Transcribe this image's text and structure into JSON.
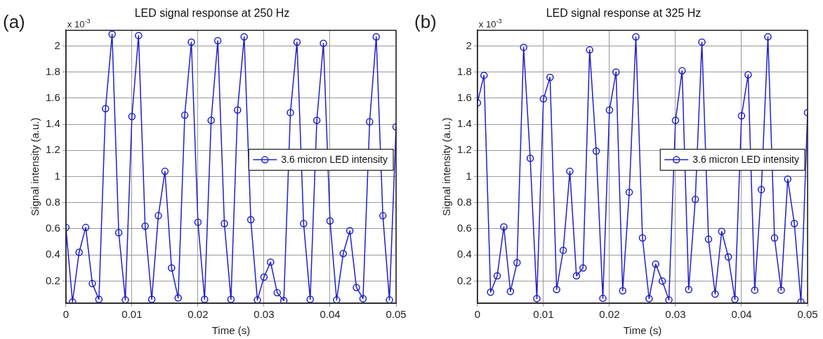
{
  "chart_data": [
    {
      "type": "line",
      "title": "LED signal response at 250 Hz",
      "xlabel": "Time (s)",
      "ylabel": "Signal intensity (a.u.)",
      "annotations": [
        "(a)",
        "x 10$^{-3}$"
      ],
      "x": [
        0,
        0.001,
        0.002,
        0.003,
        0.004,
        0.005,
        0.006,
        0.007,
        0.008,
        0.009,
        0.01,
        0.011,
        0.012,
        0.013,
        0.014,
        0.015,
        0.016,
        0.017,
        0.018,
        0.019,
        0.02,
        0.021,
        0.022,
        0.023,
        0.024,
        0.025,
        0.026,
        0.027,
        0.028,
        0.029,
        0.03,
        0.031,
        0.032,
        0.033,
        0.034,
        0.035,
        0.036,
        0.037,
        0.038,
        0.039,
        0.04,
        0.041,
        0.042,
        0.043,
        0.044,
        0.045,
        0.046,
        0.047,
        0.048,
        0.049,
        0.05
      ],
      "series": [
        {
          "name": "3.6 micron LED intensity",
          "color": "#2020c8",
          "values": [
            0.61,
            0.04,
            0.42,
            0.61,
            0.18,
            0.06,
            1.52,
            2.09,
            0.57,
            0.055,
            1.46,
            2.08,
            0.62,
            0.06,
            0.7,
            1.04,
            0.3,
            0.07,
            1.47,
            2.03,
            0.65,
            0.06,
            1.43,
            2.04,
            0.64,
            0.06,
            1.51,
            2.07,
            0.67,
            0.055,
            0.23,
            0.345,
            0.11,
            0.05,
            1.49,
            2.03,
            0.64,
            0.06,
            1.43,
            2.02,
            0.66,
            0.055,
            0.41,
            0.585,
            0.15,
            0.065,
            1.42,
            2.07,
            0.7,
            0.055,
            1.38
          ]
        }
      ],
      "xlim": [
        0,
        0.05
      ],
      "xticks": [
        0,
        0.01,
        0.02,
        0.03,
        0.04,
        0.05
      ],
      "ylim": [
        0.03,
        2.12
      ],
      "yticks": [
        0.2,
        0.4,
        0.6,
        0.8,
        1,
        1.2,
        1.4,
        1.6,
        1.8,
        2
      ],
      "grid": true,
      "legend": "right",
      "marker": "circle",
      "line_style": "solid"
    },
    {
      "type": "line",
      "title": "LED signal response at 325 Hz",
      "xlabel": "Time (s)",
      "ylabel": "Signal intensity (a.u.)",
      "annotations": [
        "(b)",
        "x 10$^{-3}$"
      ],
      "x": [
        0,
        0.001,
        0.002,
        0.003,
        0.004,
        0.005,
        0.006,
        0.007,
        0.008,
        0.009,
        0.01,
        0.011,
        0.012,
        0.013,
        0.014,
        0.015,
        0.016,
        0.017,
        0.018,
        0.019,
        0.02,
        0.021,
        0.022,
        0.023,
        0.024,
        0.025,
        0.026,
        0.027,
        0.028,
        0.029,
        0.03,
        0.031,
        0.032,
        0.033,
        0.034,
        0.035,
        0.036,
        0.037,
        0.038,
        0.039,
        0.04,
        0.041,
        0.042,
        0.043,
        0.044,
        0.045,
        0.046,
        0.047,
        0.048,
        0.049,
        0.05
      ],
      "series": [
        {
          "name": "3.6 micron LED intensity",
          "color": "#2020c8",
          "values": [
            1.565,
            1.775,
            0.115,
            0.24,
            0.615,
            0.12,
            0.34,
            1.99,
            1.14,
            0.065,
            1.595,
            1.76,
            0.135,
            0.435,
            1.04,
            0.24,
            0.3,
            1.97,
            1.195,
            0.067,
            1.51,
            1.8,
            0.125,
            0.88,
            2.07,
            0.53,
            0.065,
            0.33,
            0.2,
            0.055,
            1.43,
            1.81,
            0.135,
            0.825,
            2.03,
            0.52,
            0.1,
            0.58,
            0.385,
            0.06,
            1.465,
            1.78,
            0.13,
            0.9,
            2.07,
            0.53,
            0.13,
            0.98,
            0.64,
            0.04,
            1.49
          ]
        }
      ],
      "xlim": [
        0,
        0.05
      ],
      "xticks": [
        0,
        0.01,
        0.02,
        0.03,
        0.04,
        0.05
      ],
      "ylim": [
        0.03,
        2.12
      ],
      "yticks": [
        0.2,
        0.4,
        0.6,
        0.8,
        1,
        1.2,
        1.4,
        1.6,
        1.8,
        2
      ],
      "grid": true,
      "legend": "right",
      "marker": "circle",
      "line_style": "solid"
    }
  ]
}
